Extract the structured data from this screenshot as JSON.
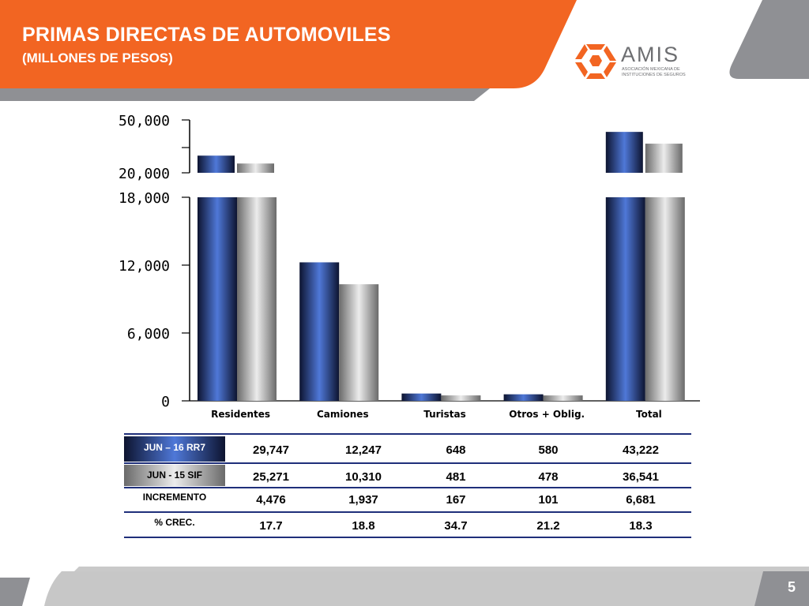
{
  "header": {
    "title": "PRIMAS DIRECTAS DE AUTOMOVILES",
    "subtitle": "(MILLONES DE PESOS)",
    "accent_color": "#f26522",
    "gray_color": "#8f9094"
  },
  "logo": {
    "name": "AMIS",
    "subtitle": "ASOCIACIÓN MEXICANA DE INSTITUCIONES DE SEGUROS",
    "icon": "amis-hexagon-logo-icon"
  },
  "chart_data": {
    "type": "bar",
    "categories": [
      "Residentes",
      "Camiones",
      "Turistas",
      "Otros + Oblig.",
      "Total"
    ],
    "series": [
      {
        "name": "JUN – 16 RR7",
        "values": [
          29747,
          12247,
          648,
          580,
          43222
        ],
        "color": "#2a4a9e"
      },
      {
        "name": "JUN -  15 SIF",
        "values": [
          25271,
          10310,
          481,
          478,
          36541
        ],
        "color": "#a0a0a0"
      }
    ],
    "axis": {
      "lower_ticks": [
        "0",
        "6,000",
        "12,000",
        "18,000"
      ],
      "lower_ylim": [
        0,
        18000
      ],
      "upper_ticks": [
        "20,000",
        "50,000"
      ],
      "upper_ylim": [
        20000,
        50000
      ],
      "broken_axis": true
    },
    "grid": false
  },
  "table": {
    "rows": [
      {
        "label": "JUN – 16 RR7",
        "values": [
          "29,747",
          "12,247",
          "648",
          "580",
          "43,222"
        ]
      },
      {
        "label": "JUN -  15 SIF",
        "values": [
          "25,271",
          "10,310",
          "481",
          "478",
          "36,541"
        ]
      },
      {
        "label": "INCREMENTO",
        "values": [
          "4,476",
          "1,937",
          "167",
          "101",
          "6,681"
        ]
      },
      {
        "label": "% CREC.",
        "values": [
          "17.7",
          "18.8",
          "34.7",
          "21.2",
          "18.3"
        ]
      }
    ]
  },
  "footer": {
    "page": "5"
  }
}
